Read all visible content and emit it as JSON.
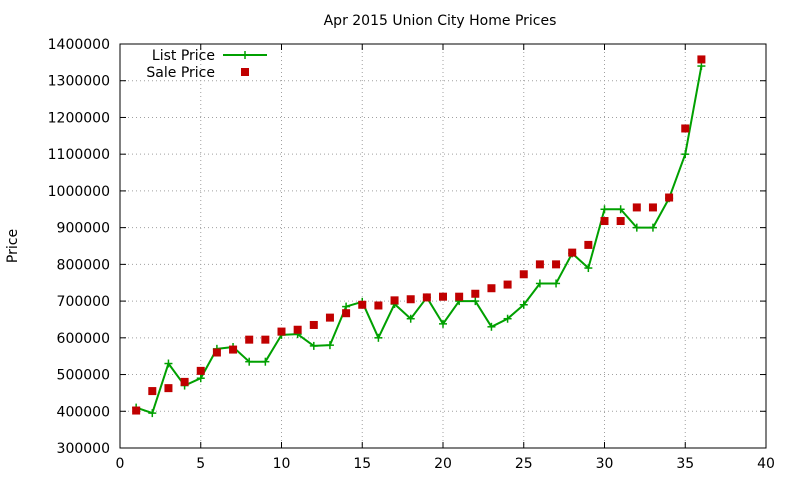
{
  "chart_data": {
    "type": "line",
    "title": "Apr 2015 Union City Home Prices",
    "xlabel": "",
    "ylabel": "Price",
    "xlim": [
      0,
      40
    ],
    "ylim": [
      300000,
      1400000
    ],
    "x_ticks": [
      0,
      5,
      10,
      15,
      20,
      25,
      30,
      35,
      40
    ],
    "y_ticks": [
      300000,
      400000,
      500000,
      600000,
      700000,
      800000,
      900000,
      1000000,
      1100000,
      1200000,
      1300000,
      1400000
    ],
    "x_tick_labels": [
      "0",
      "5",
      "10",
      "15",
      "20",
      "25",
      "30",
      "35",
      "40"
    ],
    "y_tick_labels": [
      "300000",
      "400000",
      "500000",
      "600000",
      "700000",
      "800000",
      "900000",
      "1000000",
      "1100000",
      "1200000",
      "1300000",
      "1400000"
    ],
    "grid": true,
    "legend_position": "top-left",
    "series": [
      {
        "name": "List Price",
        "kind": "line-points",
        "marker": "plus",
        "color": "#00a000",
        "x": [
          1,
          2,
          3,
          4,
          5,
          6,
          7,
          8,
          9,
          10,
          11,
          12,
          13,
          14,
          15,
          16,
          17,
          18,
          19,
          20,
          21,
          22,
          23,
          24,
          25,
          26,
          27,
          28,
          29,
          30,
          31,
          32,
          33,
          34,
          35,
          36
        ],
        "y": [
          410000,
          395000,
          530000,
          470000,
          490000,
          570000,
          575000,
          535000,
          535000,
          608000,
          610000,
          578000,
          580000,
          685000,
          698000,
          600000,
          692000,
          652000,
          710000,
          638000,
          700000,
          700000,
          630000,
          652000,
          690000,
          748000,
          748000,
          830000,
          790000,
          950000,
          950000,
          900000,
          900000,
          980000,
          1100000,
          1340000
        ]
      },
      {
        "name": "Sale Price",
        "kind": "points",
        "marker": "square",
        "color": "#c00000",
        "x": [
          1,
          2,
          3,
          4,
          5,
          6,
          7,
          8,
          9,
          10,
          11,
          12,
          13,
          14,
          15,
          16,
          17,
          18,
          19,
          20,
          21,
          22,
          23,
          24,
          25,
          26,
          27,
          28,
          29,
          30,
          31,
          32,
          33,
          34,
          35,
          36
        ],
        "y": [
          402000,
          455000,
          463000,
          480000,
          510000,
          560000,
          568000,
          595000,
          595000,
          617000,
          622000,
          635000,
          655000,
          667000,
          690000,
          688000,
          702000,
          705000,
          710000,
          712000,
          712000,
          720000,
          735000,
          745000,
          773000,
          800000,
          800000,
          832000,
          853000,
          918000,
          918000,
          955000,
          955000,
          982000,
          1170000,
          1358000
        ]
      }
    ]
  }
}
